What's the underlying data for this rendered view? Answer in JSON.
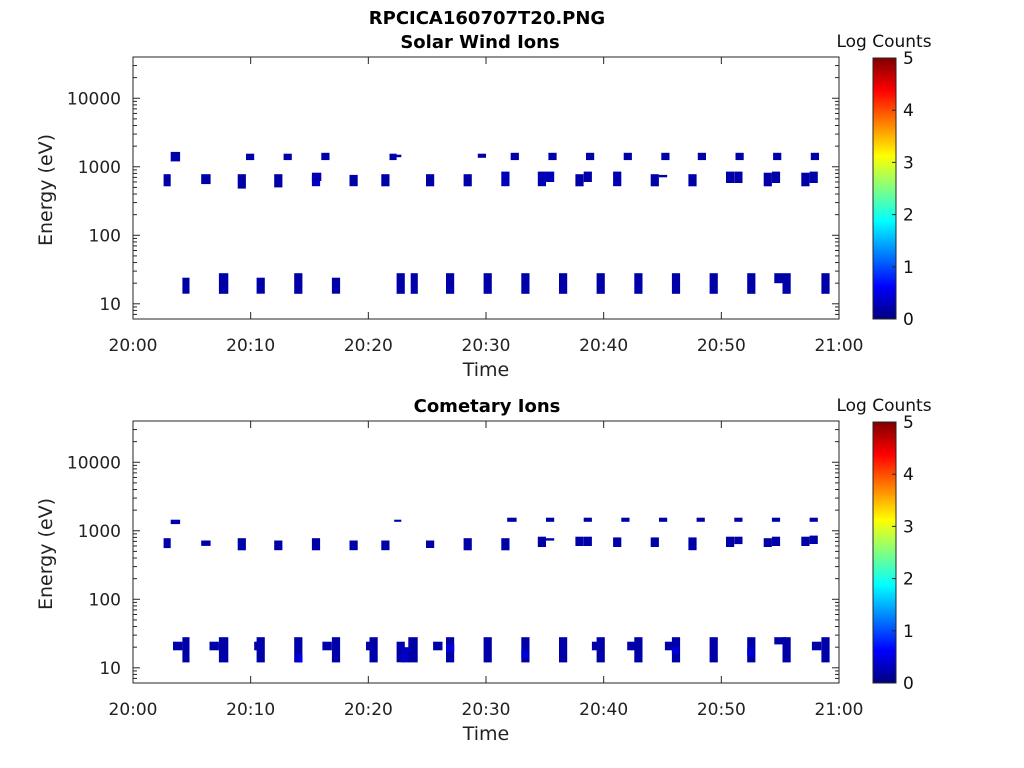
{
  "figure": {
    "title": "RPCICA160707T20.PNG"
  },
  "colormap_stops": [
    "#00007f",
    "#0000ff",
    "#0080ff",
    "#00ffff",
    "#80ff80",
    "#ffff00",
    "#ff8000",
    "#ff0000",
    "#7f0000"
  ],
  "chart_data": [
    {
      "type": "heatmap",
      "title": "Solar Wind Ions",
      "xlabel": "Time",
      "ylabel": "Energy (eV)",
      "x_ticks": [
        "20:00",
        "20:10",
        "20:20",
        "20:30",
        "20:40",
        "20:50",
        "21:00"
      ],
      "xlim_minutes": [
        0,
        60
      ],
      "y_scale": "log",
      "ylim": [
        6,
        40000
      ],
      "y_ticks": [
        10,
        100,
        1000,
        10000
      ],
      "y_tick_labels": [
        "10",
        "100",
        "1000",
        "10000"
      ],
      "colorbar": {
        "label": "Log Counts",
        "range": [
          0,
          5
        ],
        "ticks": [
          "0",
          "1",
          "2",
          "3",
          "4",
          "5"
        ]
      },
      "cells": [
        [
          2.6,
          3.2,
          520,
          780,
          0.2
        ],
        [
          3.2,
          4.0,
          1200,
          1650,
          0.2
        ],
        [
          4.2,
          4.8,
          14,
          24,
          0.2
        ],
        [
          5.8,
          6.6,
          560,
          780,
          0.2
        ],
        [
          7.3,
          8.1,
          14,
          28,
          0.2
        ],
        [
          8.9,
          9.6,
          480,
          780,
          0.2
        ],
        [
          9.6,
          10.3,
          1250,
          1550,
          0.2
        ],
        [
          10.5,
          11.2,
          14,
          24,
          0.2
        ],
        [
          12.0,
          12.7,
          500,
          780,
          0.2
        ],
        [
          12.8,
          13.5,
          1250,
          1550,
          0.2
        ],
        [
          13.7,
          14.4,
          14,
          28,
          0.2
        ],
        [
          15.2,
          15.9,
          520,
          720,
          0.35
        ],
        [
          15.2,
          16.0,
          620,
          820,
          0.25
        ],
        [
          16.0,
          16.7,
          1250,
          1600,
          0.2
        ],
        [
          16.9,
          17.6,
          14,
          24,
          0.2
        ],
        [
          18.4,
          19.1,
          520,
          760,
          0.2
        ],
        [
          21.1,
          21.8,
          520,
          780,
          0.2
        ],
        [
          21.8,
          22.4,
          1250,
          1550,
          0.2
        ],
        [
          22.2,
          22.8,
          1380,
          1500,
          0.2
        ],
        [
          22.4,
          23.1,
          14,
          28,
          0.2
        ],
        [
          23.6,
          24.2,
          14,
          28,
          0.2
        ],
        [
          24.9,
          25.6,
          520,
          780,
          0.2
        ],
        [
          26.6,
          27.3,
          14,
          28,
          0.2
        ],
        [
          28.1,
          28.8,
          520,
          780,
          0.2
        ],
        [
          29.3,
          30.0,
          1350,
          1550,
          0.2
        ],
        [
          29.8,
          30.5,
          14,
          28,
          0.2
        ],
        [
          31.3,
          32.0,
          520,
          850,
          0.3
        ],
        [
          32.1,
          32.8,
          1250,
          1600,
          0.2
        ],
        [
          33.0,
          33.7,
          14,
          28,
          0.2
        ],
        [
          34.4,
          35.1,
          520,
          850,
          0.25
        ],
        [
          35.1,
          35.8,
          600,
          850,
          0.3
        ],
        [
          35.3,
          36.0,
          1250,
          1600,
          0.2
        ],
        [
          36.2,
          36.9,
          14,
          28,
          0.2
        ],
        [
          37.6,
          38.3,
          520,
          780,
          0.2
        ],
        [
          38.3,
          39.0,
          600,
          850,
          0.2
        ],
        [
          38.5,
          39.2,
          1250,
          1600,
          0.2
        ],
        [
          39.4,
          40.1,
          14,
          28,
          0.2
        ],
        [
          40.8,
          41.5,
          520,
          850,
          0.25
        ],
        [
          41.7,
          42.4,
          1250,
          1600,
          0.2
        ],
        [
          42.6,
          43.3,
          14,
          28,
          0.2
        ],
        [
          44.0,
          44.7,
          520,
          780,
          0.2
        ],
        [
          44.7,
          45.4,
          700,
          760,
          0.2
        ],
        [
          44.9,
          45.6,
          1250,
          1600,
          0.2
        ],
        [
          45.8,
          46.5,
          14,
          28,
          0.2
        ],
        [
          47.2,
          47.9,
          520,
          780,
          0.2
        ],
        [
          48.0,
          48.7,
          1250,
          1600,
          0.2
        ],
        [
          49.0,
          49.7,
          14,
          28,
          0.2
        ],
        [
          50.4,
          51.1,
          580,
          850,
          0.2
        ],
        [
          51.1,
          51.8,
          580,
          850,
          0.2
        ],
        [
          51.2,
          51.9,
          1250,
          1600,
          0.2
        ],
        [
          52.2,
          52.9,
          14,
          28,
          0.2
        ],
        [
          53.6,
          54.3,
          520,
          820,
          0.2
        ],
        [
          54.3,
          55.0,
          580,
          850,
          0.2
        ],
        [
          54.4,
          55.1,
          1250,
          1600,
          0.2
        ],
        [
          54.5,
          55.2,
          20,
          28,
          0.2
        ],
        [
          55.2,
          55.9,
          14,
          28,
          0.2
        ],
        [
          56.8,
          57.5,
          520,
          820,
          0.2
        ],
        [
          57.5,
          58.2,
          580,
          850,
          0.2
        ],
        [
          57.6,
          58.3,
          1250,
          1600,
          0.2
        ],
        [
          58.5,
          59.2,
          14,
          28,
          0.2
        ]
      ]
    },
    {
      "type": "heatmap",
      "title": "Cometary Ions",
      "xlabel": "Time",
      "ylabel": "Energy (eV)",
      "x_ticks": [
        "20:00",
        "20:10",
        "20:20",
        "20:30",
        "20:40",
        "20:50",
        "21:00"
      ],
      "xlim_minutes": [
        0,
        60
      ],
      "y_scale": "log",
      "ylim": [
        6,
        40000
      ],
      "y_ticks": [
        10,
        100,
        1000,
        10000
      ],
      "y_tick_labels": [
        "10",
        "100",
        "1000",
        "10000"
      ],
      "colorbar": {
        "label": "Log Counts",
        "range": [
          0,
          5
        ],
        "ticks": [
          "0",
          "1",
          "2",
          "3",
          "4",
          "5"
        ]
      },
      "cells": [
        [
          2.6,
          3.2,
          560,
          780,
          0.2
        ],
        [
          3.2,
          4.0,
          1250,
          1450,
          0.2
        ],
        [
          3.4,
          4.2,
          18,
          24,
          0.2
        ],
        [
          4.2,
          4.8,
          12,
          28,
          0.2
        ],
        [
          5.8,
          6.6,
          600,
          720,
          0.2
        ],
        [
          6.5,
          7.3,
          18,
          24,
          0.2
        ],
        [
          7.3,
          8.1,
          12,
          28,
          0.2
        ],
        [
          8.9,
          9.6,
          520,
          780,
          0.2
        ],
        [
          10.3,
          10.9,
          18,
          24,
          0.2
        ],
        [
          10.5,
          11.2,
          12,
          28,
          0.2
        ],
        [
          12.0,
          12.7,
          520,
          720,
          0.2
        ],
        [
          13.7,
          14.4,
          12,
          28,
          0.2
        ],
        [
          13.9,
          14.4,
          12,
          16,
          0.5
        ],
        [
          15.2,
          15.9,
          520,
          780,
          0.2
        ],
        [
          16.1,
          16.9,
          18,
          24,
          0.2
        ],
        [
          16.9,
          17.6,
          12,
          28,
          0.2
        ],
        [
          18.4,
          19.1,
          520,
          720,
          0.2
        ],
        [
          19.8,
          20.4,
          18,
          24,
          0.2
        ],
        [
          20.1,
          20.8,
          12,
          28,
          0.2
        ],
        [
          21.1,
          21.8,
          520,
          720,
          0.2
        ],
        [
          22.2,
          22.8,
          1350,
          1450,
          0.2
        ],
        [
          22.4,
          23.1,
          12,
          24,
          0.2
        ],
        [
          22.8,
          23.5,
          12,
          20,
          0.35
        ],
        [
          23.4,
          24.2,
          12,
          28,
          0.2
        ],
        [
          24.9,
          25.6,
          560,
          720,
          0.2
        ],
        [
          25.5,
          26.3,
          18,
          24,
          0.2
        ],
        [
          26.6,
          27.3,
          12,
          28,
          0.2
        ],
        [
          26.6,
          27.3,
          17,
          22,
          0.45
        ],
        [
          28.1,
          28.8,
          520,
          780,
          0.2
        ],
        [
          29.8,
          30.5,
          12,
          28,
          0.2
        ],
        [
          31.3,
          32.0,
          520,
          780,
          0.2
        ],
        [
          31.8,
          32.6,
          1350,
          1550,
          0.2
        ],
        [
          33.0,
          33.7,
          12,
          28,
          0.2
        ],
        [
          33.0,
          33.6,
          14,
          18,
          0.45
        ],
        [
          34.4,
          35.1,
          580,
          820,
          0.2
        ],
        [
          35.1,
          35.8,
          720,
          780,
          0.2
        ],
        [
          35.1,
          35.8,
          1350,
          1550,
          0.2
        ],
        [
          36.2,
          36.9,
          12,
          28,
          0.2
        ],
        [
          37.6,
          38.3,
          600,
          820,
          0.2
        ],
        [
          38.3,
          39.0,
          600,
          820,
          0.2
        ],
        [
          38.3,
          39.0,
          1350,
          1550,
          0.2
        ],
        [
          39.0,
          39.6,
          18,
          24,
          0.2
        ],
        [
          39.4,
          40.1,
          12,
          28,
          0.2
        ],
        [
          40.8,
          41.5,
          580,
          800,
          0.2
        ],
        [
          41.5,
          42.2,
          1350,
          1550,
          0.2
        ],
        [
          42.0,
          42.8,
          18,
          24,
          0.2
        ],
        [
          42.6,
          43.3,
          12,
          28,
          0.2
        ],
        [
          44.0,
          44.7,
          580,
          800,
          0.2
        ],
        [
          44.7,
          45.4,
          1350,
          1550,
          0.2
        ],
        [
          45.2,
          46.0,
          18,
          24,
          0.2
        ],
        [
          45.8,
          46.5,
          12,
          28,
          0.2
        ],
        [
          45.8,
          46.4,
          16,
          20,
          0.45
        ],
        [
          47.2,
          47.9,
          520,
          800,
          0.2
        ],
        [
          47.9,
          48.6,
          1350,
          1550,
          0.2
        ],
        [
          49.0,
          49.7,
          12,
          28,
          0.2
        ],
        [
          50.4,
          51.1,
          580,
          820,
          0.2
        ],
        [
          51.1,
          51.8,
          640,
          820,
          0.2
        ],
        [
          51.1,
          51.8,
          1350,
          1550,
          0.2
        ],
        [
          52.2,
          52.9,
          12,
          28,
          0.2
        ],
        [
          52.2,
          52.8,
          15,
          19,
          0.45
        ],
        [
          53.6,
          54.3,
          580,
          780,
          0.2
        ],
        [
          54.3,
          55.0,
          600,
          820,
          0.2
        ],
        [
          54.3,
          55.0,
          1350,
          1550,
          0.2
        ],
        [
          54.5,
          55.5,
          22,
          28,
          0.2
        ],
        [
          55.2,
          55.9,
          12,
          28,
          0.2
        ],
        [
          56.8,
          57.5,
          600,
          820,
          0.2
        ],
        [
          57.5,
          58.2,
          640,
          850,
          0.2
        ],
        [
          57.5,
          58.2,
          1350,
          1550,
          0.2
        ],
        [
          57.7,
          58.5,
          18,
          24,
          0.2
        ],
        [
          58.5,
          59.2,
          12,
          28,
          0.2
        ]
      ]
    }
  ]
}
